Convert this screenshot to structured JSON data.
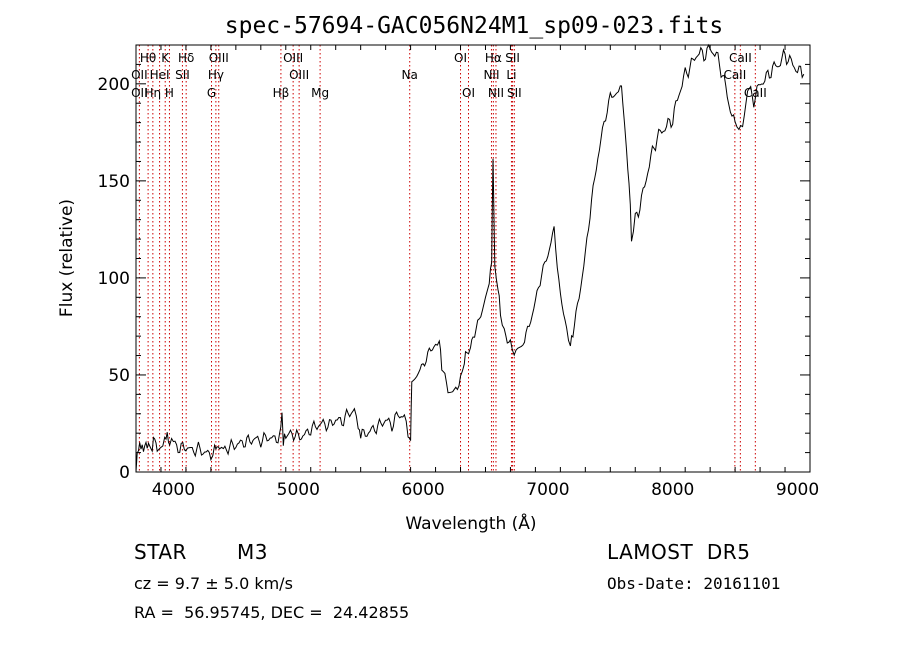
{
  "chart_data": {
    "type": "line",
    "title": "spec-57694-GAC056N24M1_sp09-023.fits",
    "xlabel": "Wavelength (Å)",
    "ylabel": "Flux (relative)",
    "xlim": [
      3700,
      9100
    ],
    "ylim": [
      0,
      220
    ],
    "xticks": [
      4000,
      5000,
      6000,
      7000,
      8000,
      9000
    ],
    "yticks": [
      0,
      50,
      100,
      150,
      200
    ],
    "grid": false,
    "series": [
      {
        "color": "#000000",
        "points": [
          [
            3700,
            2
          ],
          [
            3720,
            12
          ],
          [
            3740,
            15
          ],
          [
            3760,
            10
          ],
          [
            3780,
            16
          ],
          [
            3800,
            12
          ],
          [
            3830,
            14
          ],
          [
            3850,
            17
          ],
          [
            3870,
            12
          ],
          [
            3900,
            14
          ],
          [
            3930,
            15
          ],
          [
            3950,
            20
          ],
          [
            3970,
            14
          ],
          [
            4000,
            15
          ],
          [
            4050,
            12
          ],
          [
            4100,
            13
          ],
          [
            4150,
            11
          ],
          [
            4200,
            12
          ],
          [
            4250,
            10
          ],
          [
            4300,
            9
          ],
          [
            4330,
            11
          ],
          [
            4350,
            14
          ],
          [
            4370,
            12
          ],
          [
            4400,
            11
          ],
          [
            4450,
            13
          ],
          [
            4500,
            14
          ],
          [
            4550,
            15
          ],
          [
            4600,
            16
          ],
          [
            4650,
            17
          ],
          [
            4700,
            16
          ],
          [
            4750,
            18
          ],
          [
            4800,
            17
          ],
          [
            4850,
            18
          ],
          [
            4870,
            29
          ],
          [
            4880,
            17
          ],
          [
            4900,
            18
          ],
          [
            4950,
            20
          ],
          [
            5000,
            18
          ],
          [
            5050,
            19
          ],
          [
            5100,
            22
          ],
          [
            5150,
            24
          ],
          [
            5200,
            25
          ],
          [
            5250,
            24
          ],
          [
            5300,
            27
          ],
          [
            5350,
            26
          ],
          [
            5400,
            30
          ],
          [
            5450,
            32
          ],
          [
            5480,
            24
          ],
          [
            5500,
            19
          ],
          [
            5550,
            20
          ],
          [
            5600,
            22
          ],
          [
            5650,
            24
          ],
          [
            5700,
            27
          ],
          [
            5750,
            24
          ],
          [
            5800,
            30
          ],
          [
            5850,
            28
          ],
          [
            5880,
            20
          ],
          [
            5900,
            16
          ],
          [
            5910,
            46
          ],
          [
            5950,
            50
          ],
          [
            6000,
            55
          ],
          [
            6050,
            62
          ],
          [
            6100,
            66
          ],
          [
            6130,
            68
          ],
          [
            6150,
            55
          ],
          [
            6200,
            42
          ],
          [
            6250,
            41
          ],
          [
            6300,
            48
          ],
          [
            6330,
            58
          ],
          [
            6350,
            62
          ],
          [
            6380,
            64
          ],
          [
            6400,
            70
          ],
          [
            6450,
            78
          ],
          [
            6500,
            90
          ],
          [
            6530,
            98
          ],
          [
            6550,
            110
          ],
          [
            6560,
            160
          ],
          [
            6575,
            104
          ],
          [
            6600,
            95
          ],
          [
            6620,
            82
          ],
          [
            6650,
            72
          ],
          [
            6700,
            66
          ],
          [
            6730,
            62
          ],
          [
            6760,
            64
          ],
          [
            6800,
            67
          ],
          [
            6850,
            75
          ],
          [
            6900,
            88
          ],
          [
            6950,
            102
          ],
          [
            7000,
            112
          ],
          [
            7050,
            125
          ],
          [
            7100,
            90
          ],
          [
            7150,
            75
          ],
          [
            7180,
            65
          ],
          [
            7200,
            72
          ],
          [
            7250,
            90
          ],
          [
            7300,
            112
          ],
          [
            7350,
            140
          ],
          [
            7400,
            162
          ],
          [
            7450,
            180
          ],
          [
            7500,
            193
          ],
          [
            7550,
            196
          ],
          [
            7580,
            200
          ],
          [
            7600,
            194
          ],
          [
            7630,
            165
          ],
          [
            7650,
            150
          ],
          [
            7670,
            120
          ],
          [
            7700,
            130
          ],
          [
            7750,
            140
          ],
          [
            7800,
            155
          ],
          [
            7850,
            168
          ],
          [
            7900,
            175
          ],
          [
            7950,
            178
          ],
          [
            8000,
            182
          ],
          [
            8050,
            195
          ],
          [
            8100,
            205
          ],
          [
            8150,
            210
          ],
          [
            8200,
            216
          ],
          [
            8250,
            215
          ],
          [
            8300,
            218
          ],
          [
            8350,
            215
          ],
          [
            8400,
            205
          ],
          [
            8450,
            190
          ],
          [
            8500,
            178
          ],
          [
            8530,
            175
          ],
          [
            8560,
            182
          ],
          [
            8600,
            198
          ],
          [
            8650,
            192
          ],
          [
            8700,
            200
          ],
          [
            8750,
            203
          ],
          [
            8800,
            208
          ],
          [
            8850,
            210
          ],
          [
            8900,
            215
          ],
          [
            8950,
            211
          ],
          [
            9000,
            207
          ],
          [
            9050,
            205
          ]
        ]
      }
    ],
    "lines": [
      {
        "label": "Hθ",
        "x": 3797,
        "row": 0
      },
      {
        "label": "OII",
        "x": 3727,
        "row": 1
      },
      {
        "label": "OII",
        "x": 3727,
        "row": 2
      },
      {
        "label": "Hη",
        "x": 3835,
        "row": 2
      },
      {
        "label": "HeI",
        "x": 3889,
        "row": 1
      },
      {
        "label": "K",
        "x": 3934,
        "row": 0
      },
      {
        "label": "H",
        "x": 3968,
        "row": 2
      },
      {
        "label": "Hδ",
        "x": 4102,
        "row": 0
      },
      {
        "label": "SII",
        "x": 4072,
        "row": 1
      },
      {
        "label": "OIII",
        "x": 4363,
        "row": 0
      },
      {
        "label": "Hγ",
        "x": 4340,
        "row": 1
      },
      {
        "label": "G",
        "x": 4305,
        "row": 2
      },
      {
        "label": "Hβ",
        "x": 4861,
        "row": 2
      },
      {
        "label": "OIII",
        "x": 4959,
        "row": 0
      },
      {
        "label": "OIII",
        "x": 5007,
        "row": 1
      },
      {
        "label": "Mg",
        "x": 5175,
        "row": 2
      },
      {
        "label": "Na",
        "x": 5893,
        "row": 1
      },
      {
        "label": "OI",
        "x": 6300,
        "row": 0
      },
      {
        "label": "OI",
        "x": 6364,
        "row": 2
      },
      {
        "label": "Hα",
        "x": 6563,
        "row": 0
      },
      {
        "label": "NII",
        "x": 6548,
        "row": 1
      },
      {
        "label": "NII",
        "x": 6584,
        "row": 2
      },
      {
        "label": "SII",
        "x": 6717,
        "row": 0
      },
      {
        "label": "Li",
        "x": 6708,
        "row": 1
      },
      {
        "label": "SII",
        "x": 6731,
        "row": 2
      },
      {
        "label": "CaII",
        "x": 8542,
        "row": 0
      },
      {
        "label": "CaII",
        "x": 8498,
        "row": 1
      },
      {
        "label": "CaII",
        "x": 8662,
        "row": 2
      }
    ]
  },
  "info": {
    "object_class": "STAR",
    "subclass": "M3",
    "survey": "LAMOST  DR5",
    "cz": "cz = 9.7 ± 5.0 km/s",
    "obs_date": "Obs-Date: 20161101",
    "coords": "RA =  56.95745, DEC =  24.42855"
  }
}
